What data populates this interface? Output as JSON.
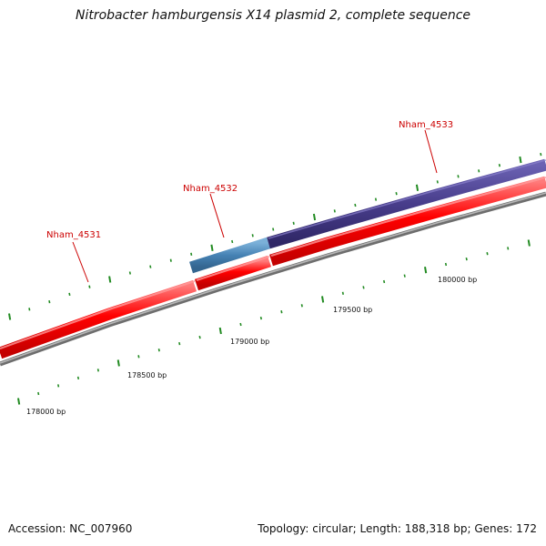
{
  "title": "Nitrobacter hamburgensis X14 plasmid 2, complete sequence",
  "footer": {
    "accession": "Accession: NC_007960",
    "stats": "Topology: circular; Length: 188,318 bp; Genes: 172"
  },
  "genes": [
    {
      "label": "Nham_4531",
      "color": "#ff0000"
    },
    {
      "label": "Nham_4532",
      "color": "#4682b4"
    },
    {
      "label": "Nham_4533",
      "color": "#483d8b"
    }
  ],
  "position_ticks": [
    {
      "label": "178000 bp"
    },
    {
      "label": "178500 bp"
    },
    {
      "label": "179000 bp"
    },
    {
      "label": "179500 bp"
    },
    {
      "label": "180000 bp"
    }
  ],
  "colors": {
    "gene_label": "#cc0000",
    "forward_strand": "#ff0000",
    "backbone": "#808080",
    "tick_marks": "#228b22"
  }
}
